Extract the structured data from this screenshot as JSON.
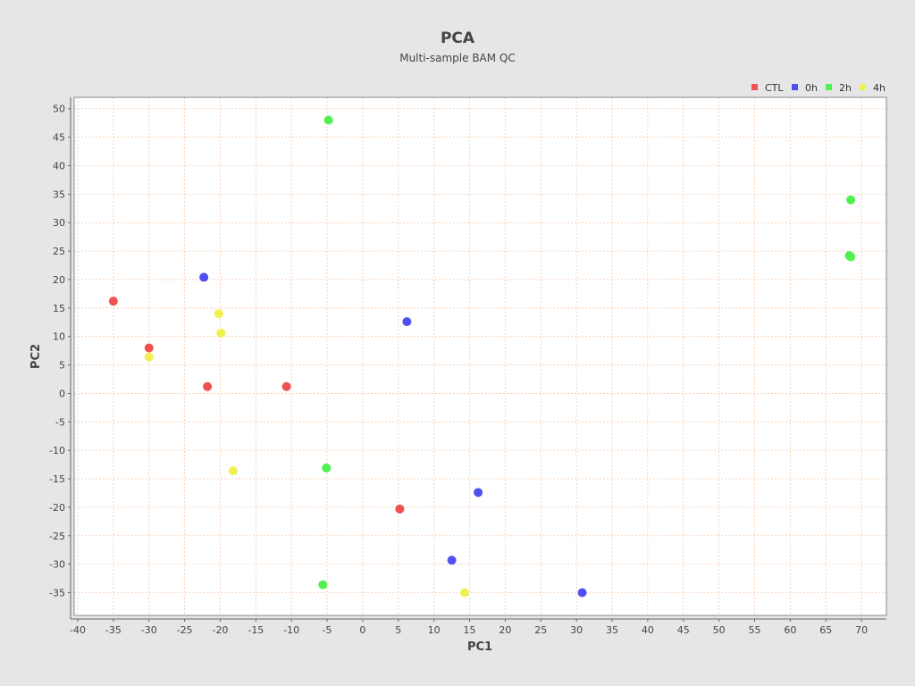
{
  "chart_data": {
    "type": "scatter",
    "title": "PCA",
    "subtitle": "Multi-sample BAM QC",
    "xlabel": "PC1",
    "ylabel": "PC2",
    "xlim": [
      -40.5,
      73.5
    ],
    "ylim": [
      -39,
      52
    ],
    "xticks": [
      -40,
      -35,
      -30,
      -25,
      -20,
      -15,
      -10,
      -5,
      0,
      5,
      10,
      15,
      20,
      25,
      30,
      35,
      40,
      45,
      50,
      55,
      60,
      65,
      70
    ],
    "yticks": [
      -35,
      -30,
      -25,
      -20,
      -15,
      -10,
      -5,
      0,
      5,
      10,
      15,
      20,
      25,
      30,
      35,
      40,
      45,
      50
    ],
    "grid": true,
    "grid_color": "#f4c8a8",
    "plot_background": "#ffffff",
    "page_background": "#e6e6e6",
    "legend_position": "top-right",
    "series": [
      {
        "name": "CTL",
        "color": "#f05050",
        "points": [
          [
            -35,
            16.2
          ],
          [
            -30,
            8
          ],
          [
            -21.8,
            1.2
          ],
          [
            -10.7,
            1.2
          ],
          [
            5.2,
            -20.3
          ]
        ]
      },
      {
        "name": "0h",
        "color": "#5050f0",
        "points": [
          [
            -22.3,
            20.4
          ],
          [
            6.2,
            12.6
          ],
          [
            16.2,
            -17.4
          ],
          [
            12.5,
            -29.3
          ],
          [
            30.8,
            -35
          ]
        ]
      },
      {
        "name": "2h",
        "color": "#50f050",
        "points": [
          [
            -4.8,
            48
          ],
          [
            68.5,
            34
          ],
          [
            68.3,
            24.2
          ],
          [
            68.5,
            24
          ],
          [
            -5.1,
            -13.1
          ],
          [
            -5.6,
            -33.6
          ]
        ]
      },
      {
        "name": "4h",
        "color": "#f0f050",
        "points": [
          [
            -20.2,
            14
          ],
          [
            -19.9,
            10.6
          ],
          [
            -30,
            6.4
          ],
          [
            -18.2,
            -13.6
          ],
          [
            14.3,
            -35
          ]
        ]
      }
    ]
  }
}
